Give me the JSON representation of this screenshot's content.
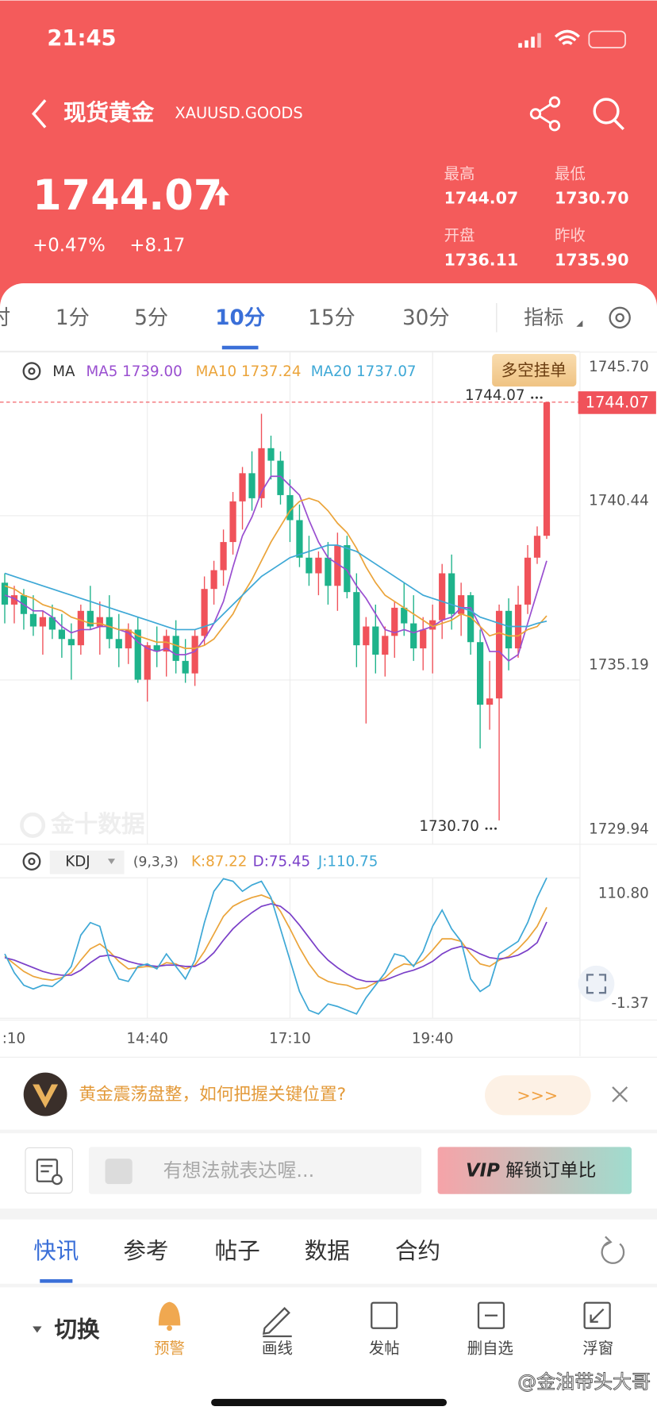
{
  "status_bar": {
    "time": "21:45"
  },
  "header": {
    "title": "现货黄金",
    "symbol": "XAUUSD.GOODS",
    "price": "1744.07",
    "change_pct": "+0.47%",
    "change": "+8.17",
    "stats": [
      {
        "label": "最高",
        "value": "1744.07"
      },
      {
        "label": "最低",
        "value": "1730.70"
      },
      {
        "label": "开盘",
        "value": "1736.11"
      },
      {
        "label": "昨收",
        "value": "1735.90"
      }
    ]
  },
  "period_tabs": [
    "时",
    "1分",
    "5分",
    "10分",
    "15分",
    "30分"
  ],
  "active_period_index": 3,
  "indicator_button": "指标",
  "order_button": "多空挂单",
  "watermark": "金十数据",
  "chart_data": [
    {
      "type": "candlestick",
      "indicator": "MA",
      "ohlc": [
        [
          1738.3,
          1738.6,
          1737.0,
          1737.6
        ],
        [
          1737.6,
          1738.2,
          1737.0,
          1737.9
        ],
        [
          1737.9,
          1738.1,
          1736.8,
          1737.3
        ],
        [
          1737.3,
          1737.9,
          1736.6,
          1736.9
        ],
        [
          1736.9,
          1737.4,
          1736.0,
          1737.2
        ],
        [
          1737.2,
          1737.6,
          1736.5,
          1736.8
        ],
        [
          1736.8,
          1737.3,
          1735.9,
          1736.5
        ],
        [
          1736.5,
          1737.0,
          1735.2,
          1736.3
        ],
        [
          1736.3,
          1737.6,
          1736.0,
          1737.4
        ],
        [
          1737.4,
          1738.2,
          1736.8,
          1736.9
        ],
        [
          1736.9,
          1737.7,
          1736.0,
          1737.2
        ],
        [
          1737.2,
          1737.9,
          1736.2,
          1736.5
        ],
        [
          1736.5,
          1737.3,
          1735.6,
          1736.2
        ],
        [
          1736.2,
          1737.0,
          1735.7,
          1736.8
        ],
        [
          1736.8,
          1737.2,
          1735.1,
          1735.2
        ],
        [
          1735.2,
          1736.4,
          1734.5,
          1736.3
        ],
        [
          1736.3,
          1736.9,
          1735.6,
          1736.1
        ],
        [
          1736.1,
          1736.8,
          1735.3,
          1736.6
        ],
        [
          1736.6,
          1737.1,
          1735.4,
          1735.8
        ],
        [
          1735.8,
          1736.5,
          1735.1,
          1735.4
        ],
        [
          1735.4,
          1736.8,
          1735.0,
          1736.6
        ],
        [
          1736.6,
          1738.5,
          1736.3,
          1738.1
        ],
        [
          1738.1,
          1739.0,
          1737.6,
          1738.7
        ],
        [
          1738.7,
          1740.0,
          1738.2,
          1739.6
        ],
        [
          1739.6,
          1741.2,
          1739.2,
          1740.9
        ],
        [
          1740.9,
          1742.0,
          1740.0,
          1741.8
        ],
        [
          1741.8,
          1742.5,
          1740.6,
          1741.0
        ],
        [
          1741.0,
          1743.7,
          1740.7,
          1742.6
        ],
        [
          1742.6,
          1743.0,
          1741.6,
          1742.2
        ],
        [
          1742.2,
          1742.5,
          1740.8,
          1741.1
        ],
        [
          1741.1,
          1741.6,
          1739.6,
          1740.3
        ],
        [
          1740.3,
          1740.8,
          1738.8,
          1739.1
        ],
        [
          1739.1,
          1739.8,
          1738.2,
          1738.6
        ],
        [
          1738.6,
          1739.3,
          1737.9,
          1739.1
        ],
        [
          1739.1,
          1739.6,
          1737.6,
          1738.2
        ],
        [
          1738.2,
          1739.9,
          1737.4,
          1739.5
        ],
        [
          1739.5,
          1739.8,
          1737.8,
          1738.0
        ],
        [
          1738.0,
          1738.6,
          1735.6,
          1736.3
        ],
        [
          1736.3,
          1737.2,
          1733.8,
          1736.9
        ],
        [
          1736.9,
          1737.6,
          1735.4,
          1736.0
        ],
        [
          1736.0,
          1736.9,
          1735.3,
          1736.6
        ],
        [
          1736.6,
          1737.7,
          1735.9,
          1737.5
        ],
        [
          1737.5,
          1738.3,
          1736.6,
          1737.0
        ],
        [
          1737.0,
          1737.9,
          1735.8,
          1736.2
        ],
        [
          1736.2,
          1737.2,
          1735.5,
          1736.8
        ],
        [
          1736.8,
          1737.6,
          1735.4,
          1737.1
        ],
        [
          1737.1,
          1738.9,
          1736.5,
          1738.6
        ],
        [
          1738.6,
          1739.2,
          1736.8,
          1737.3
        ],
        [
          1737.3,
          1738.3,
          1736.6,
          1737.9
        ],
        [
          1737.9,
          1738.0,
          1736.0,
          1736.4
        ],
        [
          1736.4,
          1736.8,
          1733.0,
          1734.4
        ],
        [
          1734.4,
          1735.8,
          1733.6,
          1734.6
        ],
        [
          1734.6,
          1737.6,
          1730.7,
          1737.4
        ],
        [
          1737.4,
          1737.8,
          1735.5,
          1736.2
        ],
        [
          1736.2,
          1738.2,
          1735.9,
          1737.6
        ],
        [
          1737.6,
          1739.5,
          1737.3,
          1739.1
        ],
        [
          1739.1,
          1740.1,
          1738.9,
          1739.8
        ],
        [
          1739.8,
          1744.07,
          1739.7,
          1744.07
        ]
      ],
      "up_color": "#f0525a",
      "down_color": "#1eb38b",
      "series": [
        {
          "name": "MA5",
          "legend": "MA5 1739.00",
          "color": "#9a4fd0",
          "values": [
            1737.9,
            1737.8,
            1737.6,
            1737.4,
            1737.4,
            1737.2,
            1736.9,
            1736.7,
            1736.8,
            1736.8,
            1736.9,
            1736.9,
            1736.8,
            1736.7,
            1736.4,
            1736.2,
            1736.1,
            1736.2,
            1736.0,
            1736.0,
            1736.1,
            1736.5,
            1737.0,
            1737.7,
            1738.8,
            1739.8,
            1740.4,
            1741.2,
            1741.7,
            1741.7,
            1741.4,
            1741.1,
            1740.3,
            1739.6,
            1739.1,
            1738.9,
            1738.7,
            1738.2,
            1737.8,
            1737.3,
            1736.8,
            1736.7,
            1736.8,
            1736.7,
            1736.8,
            1736.9,
            1737.1,
            1737.2,
            1737.5,
            1737.5,
            1736.9,
            1736.1,
            1736.1,
            1735.8,
            1736.0,
            1737.0,
            1738.0,
            1739.0
          ]
        },
        {
          "name": "MA10",
          "legend": "MA10 1737.24",
          "color": "#eba43a",
          "values": [
            1738.2,
            1738.1,
            1737.9,
            1737.8,
            1737.6,
            1737.5,
            1737.4,
            1737.2,
            1737.1,
            1737.0,
            1737.0,
            1736.9,
            1736.8,
            1736.8,
            1736.6,
            1736.5,
            1736.4,
            1736.4,
            1736.3,
            1736.2,
            1736.2,
            1736.3,
            1736.5,
            1736.9,
            1737.3,
            1737.9,
            1738.4,
            1739.0,
            1739.6,
            1740.1,
            1740.6,
            1740.9,
            1741.0,
            1740.9,
            1740.6,
            1740.2,
            1739.9,
            1739.4,
            1738.8,
            1738.3,
            1737.9,
            1737.7,
            1737.5,
            1737.3,
            1737.1,
            1736.9,
            1737.0,
            1737.1,
            1737.3,
            1737.2,
            1736.9,
            1736.6,
            1736.7,
            1736.6,
            1736.6,
            1736.8,
            1736.9,
            1737.24
          ]
        },
        {
          "name": "MA20",
          "legend": "MA20 1737.07",
          "color": "#3ea8d6",
          "values": [
            1738.6,
            1738.5,
            1738.4,
            1738.3,
            1738.2,
            1738.1,
            1738.0,
            1737.9,
            1737.8,
            1737.7,
            1737.6,
            1737.5,
            1737.4,
            1737.3,
            1737.2,
            1737.1,
            1737.0,
            1736.9,
            1736.8,
            1736.8,
            1736.8,
            1736.9,
            1737.0,
            1737.3,
            1737.6,
            1737.9,
            1738.2,
            1738.5,
            1738.7,
            1738.9,
            1739.1,
            1739.2,
            1739.3,
            1739.4,
            1739.5,
            1739.5,
            1739.4,
            1739.3,
            1739.1,
            1738.9,
            1738.7,
            1738.5,
            1738.3,
            1738.1,
            1737.9,
            1737.8,
            1737.7,
            1737.6,
            1737.5,
            1737.4,
            1737.2,
            1737.1,
            1737.0,
            1736.9,
            1736.9,
            1736.9,
            1737.0,
            1737.07
          ]
        }
      ],
      "xlim": [
        -0.5,
        60.5
      ],
      "xticks": [
        {
          "value": 0,
          "label": ":10"
        },
        {
          "value": 15,
          "label": "14:40"
        },
        {
          "value": 30,
          "label": "17:10"
        },
        {
          "value": 45,
          "label": "19:40"
        }
      ],
      "ylim": [
        1729.94,
        1745.7
      ],
      "yticks": [
        {
          "value": 1745.7,
          "label": "1745.70"
        },
        1740.44,
        1735.19,
        1729.94
      ],
      "grid": true,
      "last_price": 1744.07,
      "max_marker": 1744.07,
      "min_marker": {
        "value": 1730.7,
        "label": "1730.70"
      },
      "max_index": 57,
      "min_index": 52
    },
    {
      "type": "kdj",
      "indicator": "KDJ",
      "params": "(9,3,3)",
      "series": [
        {
          "name": "K",
          "legend": "K:87.22",
          "color": "#eba43a",
          "values": [
            48,
            42,
            36,
            32,
            30,
            29,
            31,
            35,
            45,
            54,
            58,
            52,
            44,
            38,
            39,
            40,
            39,
            43,
            42,
            38,
            41,
            52,
            66,
            80,
            88,
            92,
            95,
            97,
            94,
            84,
            70,
            55,
            42,
            32,
            28,
            26,
            25,
            22,
            23,
            27,
            31,
            38,
            42,
            41,
            45,
            53,
            62,
            62,
            60,
            50,
            42,
            40,
            45,
            48,
            54,
            62,
            72,
            87.22
          ]
        },
        {
          "name": "D",
          "legend": "D:75.45",
          "color": "#7a3fc8",
          "values": [
            47,
            45,
            42,
            39,
            36,
            34,
            33,
            33,
            37,
            43,
            48,
            49,
            47,
            44,
            42,
            41,
            40,
            41,
            41,
            40,
            40,
            44,
            51,
            61,
            70,
            77,
            83,
            88,
            90,
            88,
            82,
            73,
            63,
            53,
            45,
            39,
            34,
            30,
            28,
            28,
            29,
            32,
            35,
            37,
            40,
            44,
            50,
            54,
            56,
            54,
            50,
            47,
            46,
            47,
            49,
            53,
            59,
            75.45
          ]
        },
        {
          "name": "J",
          "legend": "J:110.75",
          "color": "#3ea8d6",
          "values": [
            50,
            35,
            25,
            22,
            25,
            24,
            30,
            40,
            65,
            75,
            72,
            45,
            30,
            28,
            40,
            42,
            38,
            50,
            40,
            30,
            45,
            75,
            100,
            110,
            108,
            100,
            105,
            108,
            95,
            70,
            45,
            20,
            5,
            2,
            10,
            8,
            5,
            2,
            15,
            25,
            35,
            50,
            48,
            40,
            52,
            72,
            85,
            70,
            60,
            30,
            20,
            25,
            50,
            55,
            60,
            75,
            95,
            110.75
          ]
        }
      ],
      "xlim": [
        -0.5,
        60.5
      ],
      "ylim": [
        -1.37,
        110.8
      ],
      "yticks": [
        {
          "value": 110.8,
          "label": "110.80"
        },
        -1.37
      ]
    }
  ],
  "banner": {
    "text": "黄金震荡盘整，如何把握关键位置?",
    "button": ">>>"
  },
  "comment": {
    "placeholder": "有想法就表达喔...",
    "vip_badge": "VIP",
    "vip_button": "解锁订单比"
  },
  "feed_tabs": [
    "快讯",
    "参考",
    "帖子",
    "数据",
    "合约"
  ],
  "active_feed_index": 0,
  "toolbar": {
    "switch": "切换",
    "items": [
      "预警",
      "画线",
      "发帖",
      "删自选",
      "浮窗"
    ]
  },
  "overlay_watermark": "@金油带头大哥"
}
